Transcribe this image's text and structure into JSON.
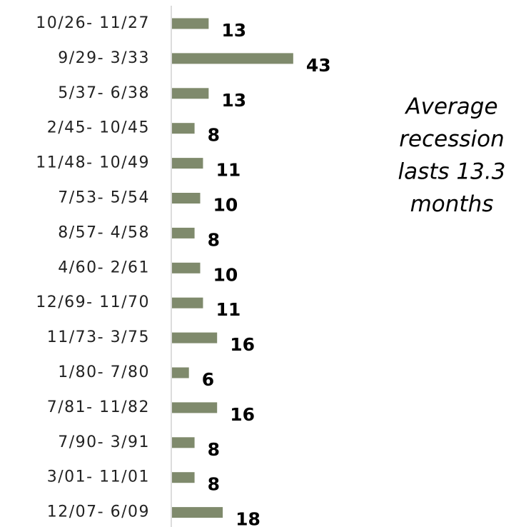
{
  "chart_data": {
    "type": "bar",
    "orientation": "horizontal",
    "categories": [
      "10/26- 11/27",
      "9/29- 3/33",
      "5/37- 6/38",
      "2/45- 10/45",
      "11/48- 10/49",
      "7/53- 5/54",
      "8/57- 4/58",
      "4/60- 2/61",
      "12/69- 11/70",
      "11/73- 3/75",
      "1/80- 7/80",
      "7/81- 11/82",
      "7/90- 3/91",
      "3/01- 11/01",
      "12/07- 6/09"
    ],
    "values": [
      13,
      43,
      13,
      8,
      11,
      10,
      8,
      10,
      11,
      16,
      6,
      16,
      8,
      8,
      18
    ],
    "color": "#7f8a6c",
    "annotation": [
      "Average",
      "recession",
      "lasts 13.3",
      "months"
    ]
  }
}
